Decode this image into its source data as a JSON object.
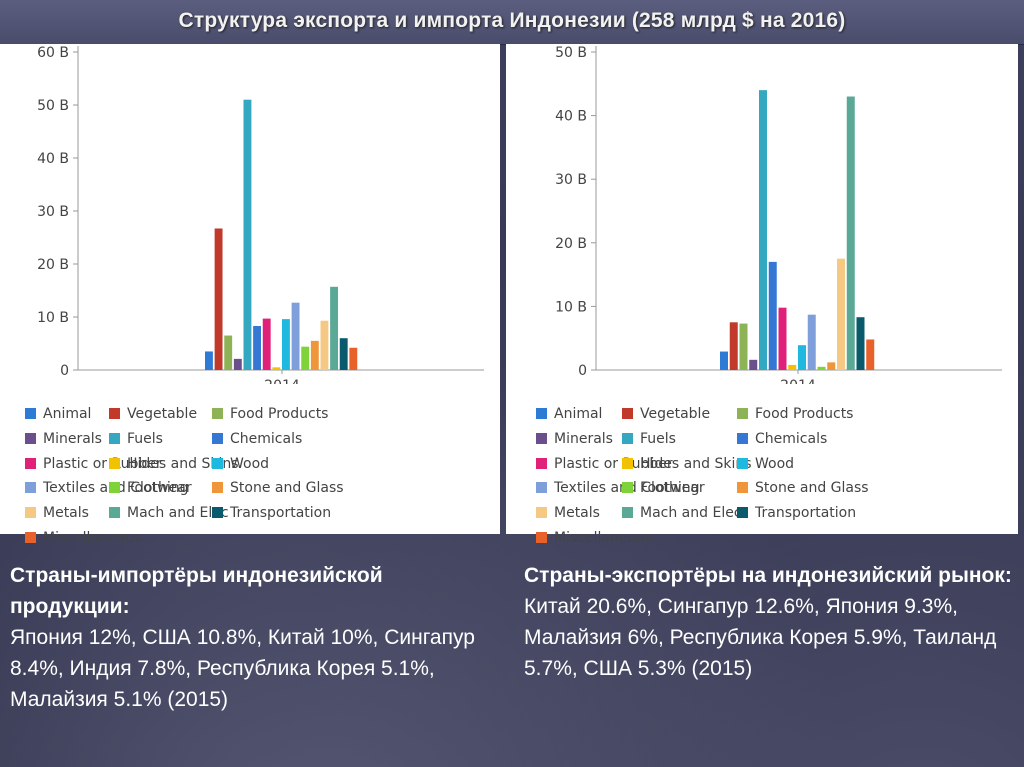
{
  "title": "Структура экспорта и импорта Индонезии (258 млрд $ на 2016)",
  "legend": [
    {
      "name": "Animal",
      "color": "#2e7bd6"
    },
    {
      "name": "Vegetable",
      "color": "#c0392b"
    },
    {
      "name": "Food Products",
      "color": "#8db356"
    },
    {
      "name": "Minerals",
      "color": "#6a4f8c"
    },
    {
      "name": "Fuels",
      "color": "#34a7c1"
    },
    {
      "name": "Chemicals",
      "color": "#3478d4"
    },
    {
      "name": "Plastic or Rubber",
      "color": "#e0217a"
    },
    {
      "name": "Hides and Skins",
      "color": "#f2c200"
    },
    {
      "name": "Wood",
      "color": "#1fb9e0"
    },
    {
      "name": "Textiles and Clothing",
      "color": "#7f9fdb"
    },
    {
      "name": "Footwear",
      "color": "#7ed23a"
    },
    {
      "name": "Stone and Glass",
      "color": "#f0963a"
    },
    {
      "name": "Metals",
      "color": "#f5c983"
    },
    {
      "name": "Mach and Elec",
      "color": "#5aa896"
    },
    {
      "name": "Transportation",
      "color": "#0a5a6e"
    },
    {
      "name": "Miscellaneous",
      "color": "#e8602a"
    }
  ],
  "chart_data": [
    {
      "type": "bar",
      "categories": [
        "2014"
      ],
      "ylim": [
        0,
        60
      ],
      "ticks": [
        "0",
        "10 B",
        "20 B",
        "30 B",
        "40 B",
        "50 B",
        "60 B"
      ],
      "tick_values": [
        0,
        10,
        20,
        30,
        40,
        50,
        60
      ],
      "series": [
        {
          "name": "Animal",
          "values": [
            3.5
          ]
        },
        {
          "name": "Vegetable",
          "values": [
            26.7
          ]
        },
        {
          "name": "Food Products",
          "values": [
            6.5
          ]
        },
        {
          "name": "Minerals",
          "values": [
            2.1
          ]
        },
        {
          "name": "Fuels",
          "values": [
            51
          ]
        },
        {
          "name": "Chemicals",
          "values": [
            8.3
          ]
        },
        {
          "name": "Plastic or Rubber",
          "values": [
            9.7
          ]
        },
        {
          "name": "Hides and Skins",
          "values": [
            0.5
          ]
        },
        {
          "name": "Wood",
          "values": [
            9.6
          ]
        },
        {
          "name": "Textiles and Clothing",
          "values": [
            12.7
          ]
        },
        {
          "name": "Footwear",
          "values": [
            4.4
          ]
        },
        {
          "name": "Stone and Glass",
          "values": [
            5.5
          ]
        },
        {
          "name": "Metals",
          "values": [
            9.3
          ]
        },
        {
          "name": "Mach and Elec",
          "values": [
            15.7
          ]
        },
        {
          "name": "Transportation",
          "values": [
            6.0
          ]
        },
        {
          "name": "Miscellaneous",
          "values": [
            4.2
          ]
        }
      ]
    },
    {
      "type": "bar",
      "categories": [
        "2014"
      ],
      "ylim": [
        0,
        50
      ],
      "ticks": [
        "0",
        "10 B",
        "20 B",
        "30 B",
        "40 B",
        "50 B"
      ],
      "tick_values": [
        0,
        10,
        20,
        30,
        40,
        50
      ],
      "series": [
        {
          "name": "Animal",
          "values": [
            2.9
          ]
        },
        {
          "name": "Vegetable",
          "values": [
            7.5
          ]
        },
        {
          "name": "Food Products",
          "values": [
            7.3
          ]
        },
        {
          "name": "Minerals",
          "values": [
            1.6
          ]
        },
        {
          "name": "Fuels",
          "values": [
            44
          ]
        },
        {
          "name": "Chemicals",
          "values": [
            17
          ]
        },
        {
          "name": "Plastic or Rubber",
          "values": [
            9.8
          ]
        },
        {
          "name": "Hides and Skins",
          "values": [
            0.8
          ]
        },
        {
          "name": "Wood",
          "values": [
            3.9
          ]
        },
        {
          "name": "Textiles and Clothing",
          "values": [
            8.7
          ]
        },
        {
          "name": "Footwear",
          "values": [
            0.5
          ]
        },
        {
          "name": "Stone and Glass",
          "values": [
            1.2
          ]
        },
        {
          "name": "Metals",
          "values": [
            17.5
          ]
        },
        {
          "name": "Mach and Elec",
          "values": [
            43
          ]
        },
        {
          "name": "Transportation",
          "values": [
            8.3
          ]
        },
        {
          "name": "Miscellaneous",
          "values": [
            4.8
          ]
        }
      ]
    }
  ],
  "left_text": {
    "heading": "Страны-импортёры индонезийской продукции:",
    "body": "Япония 12%, США 10.8%, Китай 10%, Сингапур 8.4%, Индия 7.8%, Республика Корея 5.1%, Малайзия 5.1% (2015)"
  },
  "right_text": {
    "heading": "Страны-экспортёры на индонезийский рынок:",
    "body": "Китай 20.6%, Сингапур 12.6%, Япония 9.3%, Малайзия 6%, Республика Корея 5.9%, Таиланд 5.7%, США 5.3% (2015)"
  }
}
